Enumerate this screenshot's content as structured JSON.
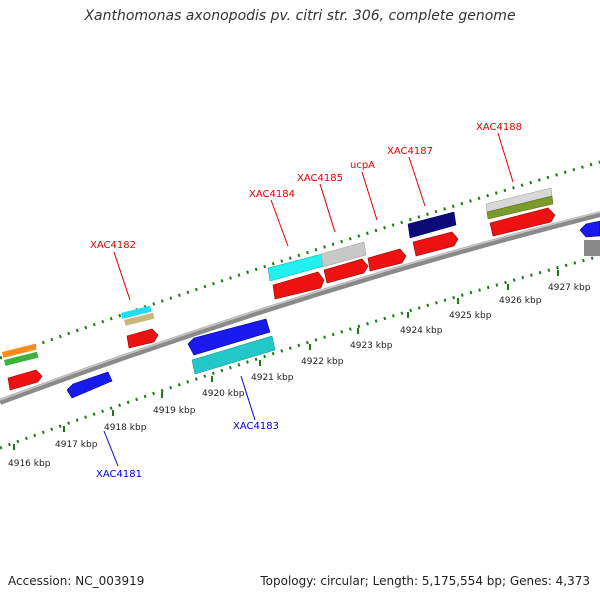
{
  "title": "Xanthomonas axonopodis pv. citri str. 306, complete genome",
  "footer": {
    "accession": "Accession: NC_003919",
    "topology": "Topology: circular; Length: 5,175,554 bp; Genes: 4,373"
  },
  "colors": {
    "forward_label": "#dd0000",
    "reverse_label": "#0000cc",
    "backbone": "#8a8a8a",
    "tick": "#1a7a1a"
  },
  "scale_labels": [
    "4916 kbp",
    "4917 kbp",
    "4918 kbp",
    "4919 kbp",
    "4920 kbp",
    "4921 kbp",
    "4922 kbp",
    "4923 kbp",
    "4924 kbp",
    "4925 kbp",
    "4926 kbp",
    "4927 kbp"
  ],
  "gene_labels": {
    "forward": [
      "XAC4182",
      "XAC4184",
      "XAC4185",
      "ucpA",
      "XAC4187",
      "XAC4188"
    ],
    "reverse": [
      "XAC4181",
      "XAC4183"
    ]
  }
}
